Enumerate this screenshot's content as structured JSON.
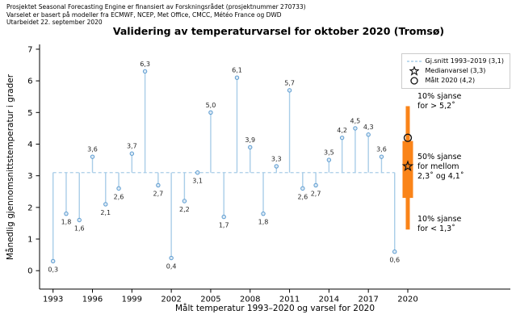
{
  "header": {
    "line1": "Prosjektet Seasonal Forecasting Engine er finansiert av Forskningsrådet (prosjektnummer 270733)",
    "line2": "Varselet er basert på modeller fra ECMWF, NCEP, Met Office, CMCC, Météo France og DWD",
    "line3": "Utarbeidet 22. september 2020"
  },
  "title": "Validering av temperaturvarsel for oktober 2020 (Tromsø)",
  "chart_data": {
    "type": "stem",
    "title": "Validering av temperaturvarsel for oktober 2020 (Tromsø)",
    "xlabel": "Målt temperatur 1993–2020 og varsel for 2020",
    "ylabel": "Månedlig gjennomsnittstemperatur i grader",
    "x": [
      1993,
      1994,
      1995,
      1996,
      1997,
      1998,
      1999,
      2000,
      2001,
      2002,
      2003,
      2004,
      2005,
      2006,
      2007,
      2008,
      2009,
      2010,
      2011,
      2012,
      2013,
      2014,
      2015,
      2016,
      2017,
      2018,
      2019
    ],
    "values": [
      0.3,
      1.8,
      1.6,
      3.6,
      2.1,
      2.6,
      3.7,
      6.3,
      2.7,
      0.4,
      2.2,
      3.1,
      5.0,
      1.7,
      6.1,
      3.9,
      1.8,
      3.3,
      5.7,
      2.6,
      2.7,
      3.5,
      4.2,
      4.5,
      4.3,
      3.6,
      0.6
    ],
    "labels": [
      "0,3",
      "1,8",
      "1,6",
      "3,6",
      "2,1",
      "2,6",
      "3,7",
      "6,3",
      "2,7",
      "0,4",
      "2,2",
      "3,1",
      "5,0",
      "1,7",
      "6,1",
      "3,9",
      "1,8",
      "3,3",
      "5,7",
      "2,6",
      "2,7",
      "3,5",
      "4,2",
      "4,5",
      "4,3",
      "3,6",
      "0,6"
    ],
    "baseline": 3.1,
    "baseline_span": [
      1993,
      2019
    ],
    "forecast_2020": {
      "x": 2020,
      "median": 3.3,
      "measured": 4.2,
      "interval_80": {
        "low": 1.3,
        "high": 5.2
      },
      "interval_50": {
        "low": 2.3,
        "high": 4.1
      }
    },
    "x_ticks": [
      1993,
      1996,
      1999,
      2002,
      2005,
      2008,
      2011,
      2014,
      2017,
      2020
    ],
    "y_ticks": [
      0,
      1,
      2,
      3,
      4,
      5,
      6,
      7
    ],
    "ylim": [
      -0.6,
      7.15
    ],
    "grid": false,
    "legend_position": "upper right"
  },
  "legend": {
    "items": [
      {
        "marker": "dashed-line",
        "label": "Gj.snitt 1993–2019 (3,1)"
      },
      {
        "marker": "star",
        "label": "Medianvarsel (3,3)"
      },
      {
        "marker": "circle",
        "label": "Målt 2020 (4,2)"
      }
    ]
  },
  "annotations": {
    "upper": {
      "line1": "10% sjanse",
      "line2": "for > 5,2˚"
    },
    "middle": {
      "line1": "50% sjanse",
      "line2": "for mellom",
      "line3": "2,3˚ og 4,1˚"
    },
    "lower": {
      "line1": "10% sjanse",
      "line2": "for < 1,3˚"
    }
  },
  "colors": {
    "stem": "#a9cde8",
    "marker_fill": "#ddeaf5",
    "marker_edge": "#5b9bd0",
    "orange": "#fa8419",
    "label_text": "#262626",
    "axis": "#000000"
  }
}
